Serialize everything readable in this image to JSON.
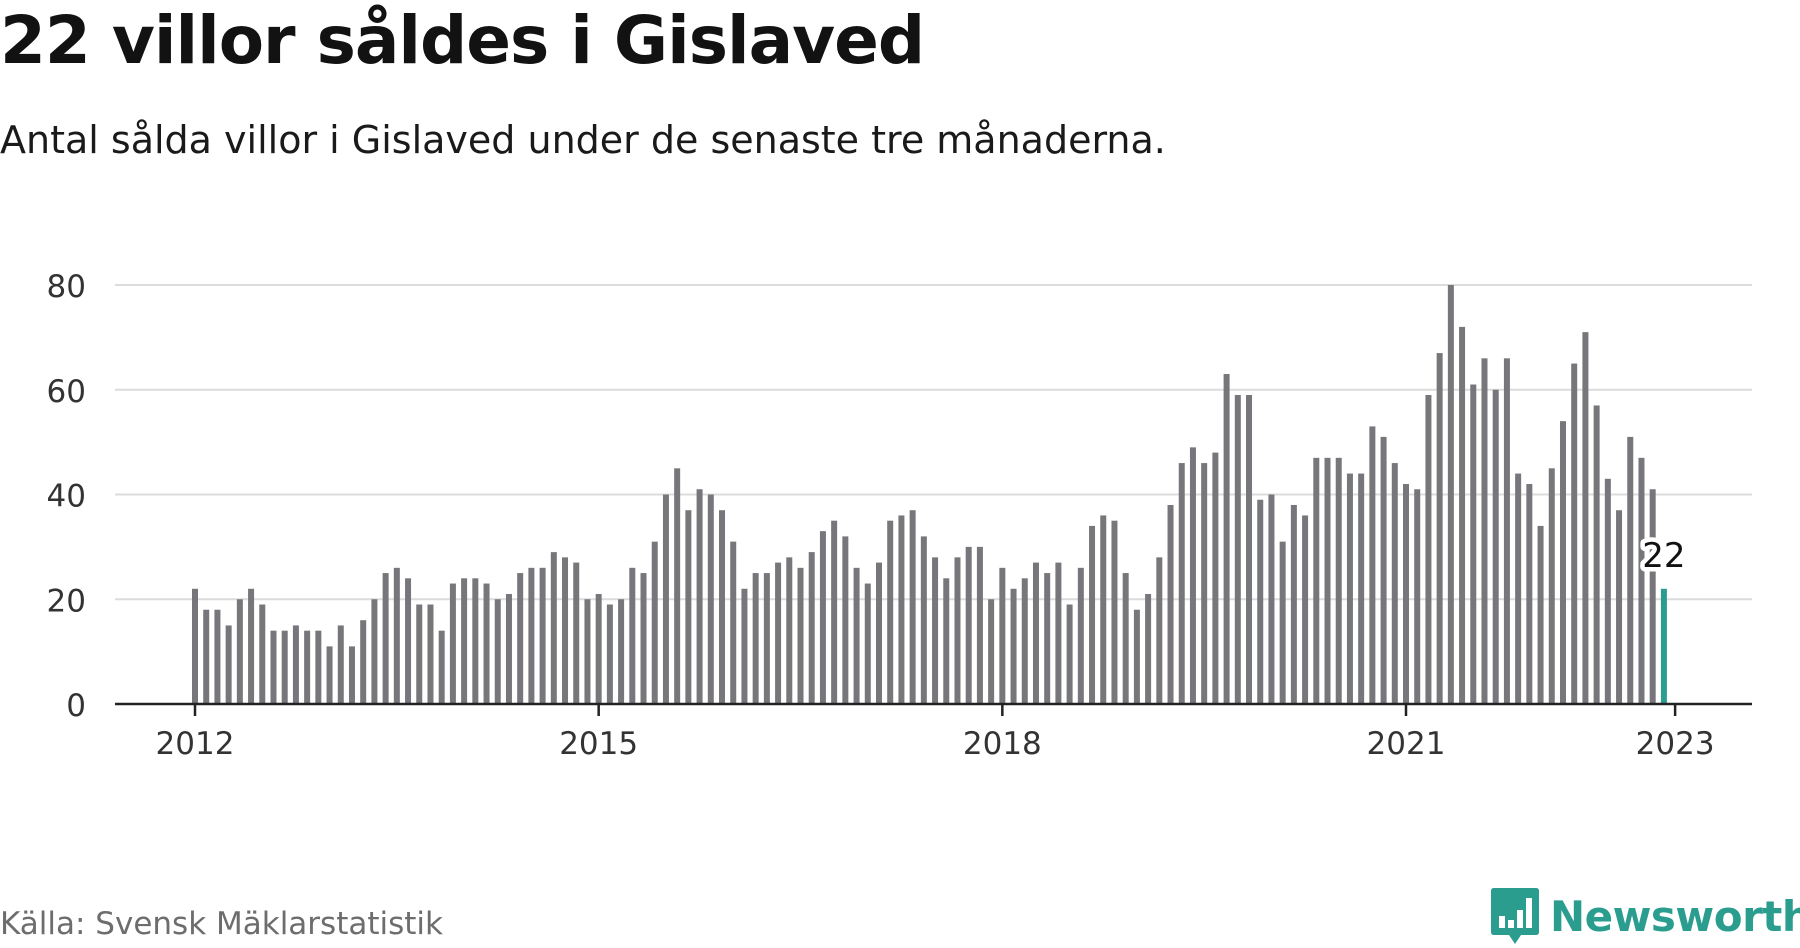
{
  "header": {
    "title": "22 villor såldes i Gislaved",
    "subtitle": "Antal sålda villor i Gislaved under de senaste tre månaderna."
  },
  "footer": {
    "source": "Källa: Svensk Mäklarstatistik",
    "brand": "Newsworthy",
    "brand_icon": "newsworthy-logo-icon"
  },
  "colors": {
    "bar": "#77767b",
    "highlight": "#2a9d8f",
    "grid": "#dcdcdc",
    "axis": "#222222",
    "text": "#333333"
  },
  "chart_data": {
    "type": "bar",
    "title": "22 villor såldes i Gislaved",
    "subtitle": "Antal sålda villor i Gislaved under de senaste tre månaderna.",
    "start": "2012-01",
    "frequency": "monthly",
    "values": [
      22,
      18,
      18,
      15,
      20,
      22,
      19,
      14,
      14,
      15,
      14,
      14,
      11,
      15,
      11,
      16,
      20,
      25,
      26,
      24,
      19,
      19,
      14,
      23,
      24,
      24,
      23,
      20,
      21,
      25,
      26,
      26,
      29,
      28,
      27,
      20,
      21,
      19,
      20,
      26,
      25,
      31,
      40,
      45,
      37,
      41,
      40,
      37,
      31,
      22,
      25,
      25,
      27,
      28,
      26,
      29,
      33,
      35,
      32,
      26,
      23,
      27,
      35,
      36,
      37,
      32,
      28,
      24,
      28,
      30,
      30,
      20,
      26,
      22,
      24,
      27,
      25,
      27,
      19,
      26,
      34,
      36,
      35,
      25,
      18,
      21,
      28,
      38,
      46,
      49,
      46,
      48,
      63,
      59,
      59,
      39,
      40,
      31,
      38,
      36,
      47,
      47,
      47,
      44,
      44,
      53,
      51,
      46,
      42,
      41,
      59,
      67,
      80,
      72,
      61,
      66,
      60,
      66,
      44,
      42,
      34,
      45,
      54,
      65,
      71,
      57,
      43,
      37,
      51,
      47,
      41,
      22
    ],
    "x_ticks": [
      "2012",
      "2015",
      "2018",
      "2021",
      "2023"
    ],
    "y_ticks": [
      0,
      20,
      40,
      60,
      80
    ],
    "ylim": [
      0,
      80
    ],
    "xlabel": "",
    "ylabel": "",
    "grid": true,
    "highlight": {
      "label": "22",
      "index": 131
    }
  }
}
